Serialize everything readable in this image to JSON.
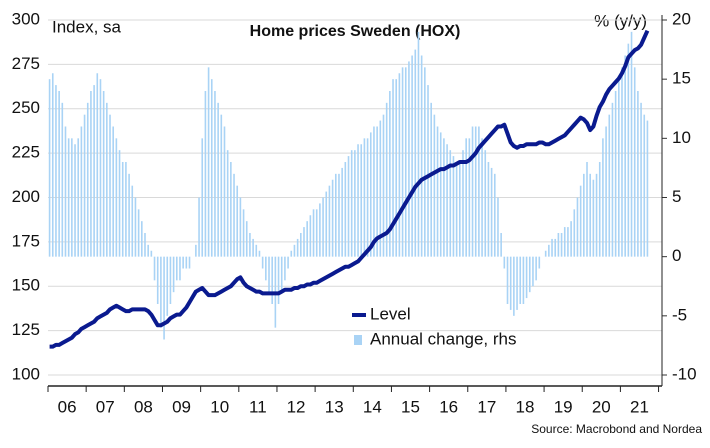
{
  "chart_data": {
    "type": "bar-line",
    "title": "Home prices Sweden (HOX)",
    "y_label": "Index, sa",
    "y2_label": "% (y/y)",
    "source": "Source: Macrobond and Nordea",
    "categories": [
      null,
      null,
      null,
      null,
      null,
      null,
      "06",
      null,
      null,
      null,
      null,
      null,
      null,
      null,
      null,
      null,
      null,
      null,
      "07",
      null,
      null,
      null,
      null,
      null,
      null,
      null,
      null,
      null,
      null,
      null,
      "08",
      null,
      null,
      null,
      null,
      null,
      null,
      null,
      null,
      null,
      null,
      null,
      "09",
      null,
      null,
      null,
      null,
      null,
      null,
      null,
      null,
      null,
      null,
      null,
      "10",
      null,
      null,
      null,
      null,
      null,
      null,
      null,
      null,
      null,
      null,
      null,
      "11",
      null,
      null,
      null,
      null,
      null,
      null,
      null,
      null,
      null,
      null,
      null,
      "12",
      null,
      null,
      null,
      null,
      null,
      null,
      null,
      null,
      null,
      null,
      null,
      "13",
      null,
      null,
      null,
      null,
      null,
      null,
      null,
      null,
      null,
      null,
      null,
      "14",
      null,
      null,
      null,
      null,
      null,
      null,
      null,
      null,
      null,
      null,
      null,
      "15",
      null,
      null,
      null,
      null,
      null,
      null,
      null,
      null,
      null,
      null,
      null,
      "16",
      null,
      null,
      null,
      null,
      null,
      null,
      null,
      null,
      null,
      null,
      null,
      "17",
      null,
      null,
      null,
      null,
      null,
      null,
      null,
      null,
      null,
      null,
      null,
      "18",
      null,
      null,
      null,
      null,
      null,
      null,
      null,
      null,
      null,
      null,
      null,
      "19",
      null,
      null,
      null,
      null,
      null,
      null,
      null,
      null,
      null,
      null,
      null,
      "20",
      null,
      null,
      null,
      null,
      null,
      null,
      null,
      null,
      null,
      null,
      null,
      "21",
      null,
      null
    ],
    "series": [
      {
        "name": "Level",
        "type": "line",
        "color": "#0a1a8f",
        "values": [
          116,
          116,
          117,
          117,
          118,
          119,
          120,
          121,
          123,
          124,
          126,
          127,
          128,
          129,
          130,
          132,
          133,
          134,
          135,
          137,
          138,
          139,
          138,
          137,
          136,
          136,
          137,
          137,
          137,
          137,
          137,
          136,
          134,
          131,
          128,
          128,
          129,
          130,
          132,
          133,
          134,
          134,
          136,
          138,
          141,
          144,
          147,
          148,
          149,
          147,
          145,
          145,
          145,
          146,
          147,
          148,
          149,
          150,
          152,
          154,
          155,
          152,
          150,
          149,
          148,
          147,
          147,
          146,
          146,
          146,
          146,
          146,
          146,
          147,
          148,
          148,
          148,
          149,
          149,
          150,
          150,
          151,
          151,
          152,
          152,
          153,
          154,
          155,
          156,
          157,
          158,
          159,
          160,
          161,
          161,
          162,
          163,
          164,
          166,
          168,
          170,
          172,
          175,
          177,
          178,
          179,
          180,
          182,
          185,
          188,
          191,
          194,
          197,
          200,
          203,
          206,
          208,
          210,
          211,
          212,
          213,
          214,
          215,
          216,
          216,
          217,
          218,
          218,
          219,
          220,
          220,
          220,
          221,
          223,
          225,
          228,
          230,
          232,
          234,
          236,
          238,
          240,
          240,
          241,
          236,
          231,
          229,
          228,
          229,
          229,
          230,
          230,
          230,
          230,
          231,
          231,
          230,
          230,
          231,
          232,
          233,
          234,
          235,
          237,
          239,
          241,
          243,
          245,
          244,
          242,
          238,
          240,
          246,
          251,
          254,
          258,
          261,
          263,
          265,
          267,
          270,
          274,
          279,
          281,
          283,
          284,
          286,
          290,
          294
        ]
      },
      {
        "name": "Annual change, rhs",
        "type": "bar",
        "axis": "y2",
        "color": "#a9d3f5",
        "values": [
          15,
          15.5,
          14.5,
          14,
          13,
          11,
          10,
          10,
          9.5,
          10,
          11,
          12,
          13,
          14,
          14.5,
          15.5,
          15,
          14,
          13,
          12,
          11,
          10,
          9,
          8,
          8,
          7,
          6,
          5,
          4,
          3,
          2,
          1,
          0.5,
          -2,
          -4,
          -6,
          -7,
          -5,
          -4,
          -3,
          -2,
          -2,
          -1,
          -1,
          -1,
          0,
          1,
          5,
          10,
          14,
          16,
          15,
          14,
          13,
          12,
          11,
          9,
          8,
          7,
          6,
          5,
          4,
          3,
          2,
          1.5,
          1,
          0.5,
          -1,
          -2,
          -3,
          -4,
          -6,
          -4,
          -3,
          -2,
          -1,
          0.5,
          1,
          1.5,
          2,
          2.5,
          3,
          3.5,
          4,
          4,
          4.5,
          5,
          5.5,
          6,
          6.5,
          7,
          7,
          7.5,
          8,
          8.5,
          9,
          9,
          9.5,
          9.5,
          10,
          10,
          10.5,
          11,
          11,
          11.5,
          12,
          13,
          14,
          15,
          15,
          15.5,
          16,
          16,
          16.5,
          17,
          17.5,
          19,
          17,
          16,
          14.5,
          13,
          12,
          11,
          10.5,
          10,
          9.5,
          9,
          8.5,
          8,
          8,
          9,
          10,
          10,
          11,
          11,
          11,
          10,
          9,
          8,
          7.5,
          7,
          5,
          2,
          -1,
          -4,
          -4.5,
          -5,
          -4.5,
          -4,
          -4,
          -3.5,
          -3,
          -2.5,
          -2,
          -1,
          0,
          0.5,
          1,
          1.5,
          1.5,
          2,
          2,
          2.5,
          2.5,
          3,
          4,
          5,
          6,
          7,
          8,
          7,
          6.5,
          7,
          8,
          10,
          11,
          12,
          13,
          14,
          15,
          16,
          17,
          18,
          19,
          16,
          14,
          13,
          12,
          11.5
        ]
      }
    ],
    "ylim": [
      100,
      300
    ],
    "yticks": [
      100,
      125,
      150,
      175,
      200,
      225,
      250,
      275,
      300
    ],
    "y2lim": [
      -10,
      20
    ],
    "y2ticks": [
      -10,
      -5,
      0,
      5,
      10,
      15,
      20
    ],
    "grid": true
  }
}
